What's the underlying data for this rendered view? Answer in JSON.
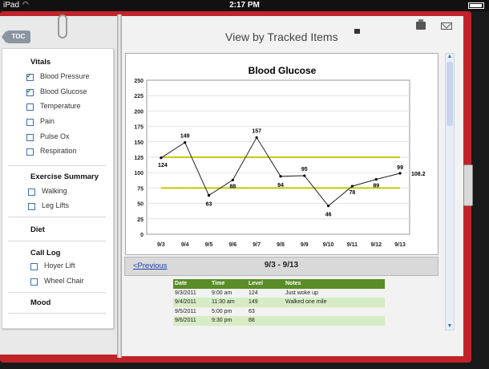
{
  "statusbar": {
    "carrier": "iPad",
    "time": "2:17 PM"
  },
  "sidebar": {
    "toc_label": "TOC",
    "sections": [
      {
        "title": "Vitals",
        "items": [
          {
            "label": "Blood Pressure",
            "checked": true
          },
          {
            "label": "Blood Glucose",
            "checked": true
          },
          {
            "label": "Temperature",
            "checked": false
          },
          {
            "label": "Pain",
            "checked": false
          },
          {
            "label": "Pulse Ox",
            "checked": false
          },
          {
            "label": "Respiration",
            "checked": false
          }
        ]
      },
      {
        "title": "Exercise Summary",
        "items": [
          {
            "label": "Walking",
            "checked": false
          },
          {
            "label": "Leg Lifts",
            "checked": false
          }
        ]
      },
      {
        "title": "Diet",
        "items": []
      },
      {
        "title": "Call Log",
        "items": [
          {
            "label": "Hoyer Lift",
            "checked": false
          },
          {
            "label": "Wheel Chair",
            "checked": false
          }
        ]
      },
      {
        "title": "Mood",
        "items": []
      }
    ]
  },
  "header": {
    "title": "View by Tracked Items"
  },
  "nav": {
    "prev_label": "<Previous",
    "range_label": "9/3 - 9/13"
  },
  "chart_data": {
    "type": "line",
    "title": "Blood Glucose",
    "categories": [
      "9/3",
      "9/4",
      "9/5",
      "9/6",
      "9/7",
      "9/8",
      "9/9",
      "9/10",
      "9/11",
      "9/12",
      "9/13"
    ],
    "values": [
      124,
      149,
      63,
      88,
      157,
      94,
      95,
      46,
      78,
      89,
      99
    ],
    "extra_point": {
      "label": "108.2"
    },
    "ylim": [
      0,
      250
    ],
    "yticks": [
      0,
      25,
      50,
      75,
      100,
      125,
      150,
      175,
      200,
      225,
      250
    ],
    "reference_lines": [
      125,
      75
    ],
    "reference_color": "#c8c800",
    "grid": true
  },
  "table": {
    "headers": [
      "Date",
      "Time",
      "Level",
      "Notes"
    ],
    "rows": [
      [
        "9/3/2011",
        "9:00 am",
        "124",
        "Just woke up"
      ],
      [
        "9/4/2011",
        "11:30 am",
        "149",
        "Walked one mile"
      ],
      [
        "9/5/2011",
        "5:00 pm",
        "63",
        ""
      ],
      [
        "9/6/2011",
        "9:30 pm",
        "88",
        ""
      ]
    ],
    "header_color": "#5a8d27",
    "alt_row_color": "#d6ecc5"
  }
}
